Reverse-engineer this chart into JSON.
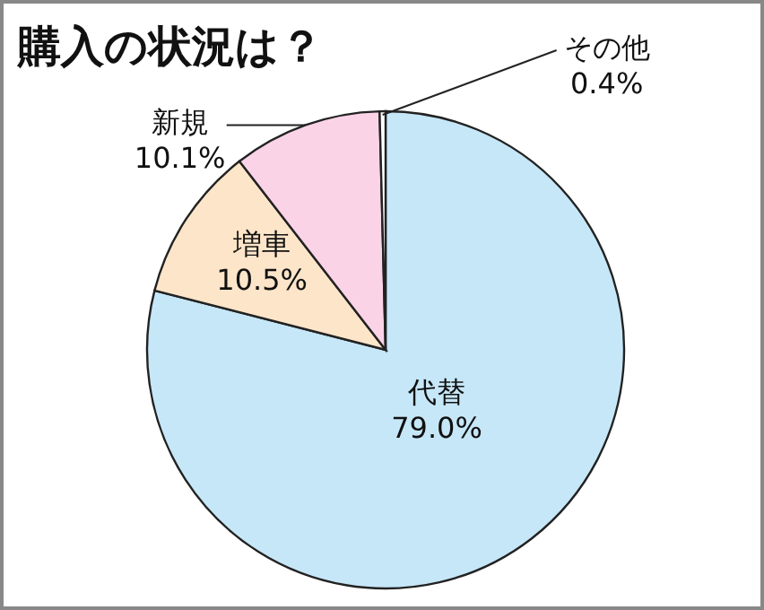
{
  "chart_data": {
    "type": "pie",
    "title": "購入の状況は？",
    "categories": [
      "代替",
      "増車",
      "新規",
      "その他"
    ],
    "values": [
      79.0,
      10.5,
      10.1,
      0.4
    ],
    "value_labels": [
      "79.0%",
      "10.5%",
      "10.1%",
      "0.4%"
    ],
    "colors": [
      "#c6e7f8",
      "#fde5c9",
      "#fbd3e7",
      "#ffffff"
    ]
  }
}
